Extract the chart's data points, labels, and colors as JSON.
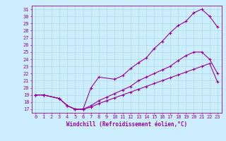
{
  "xlabel": "Windchill (Refroidissement éolien,°C)",
  "bg_color": "#cceeff",
  "line_color": "#990099",
  "xlim": [
    -0.5,
    23.5
  ],
  "ylim": [
    16.5,
    31.5
  ],
  "xticks": [
    0,
    1,
    2,
    3,
    4,
    5,
    6,
    7,
    8,
    9,
    10,
    11,
    12,
    13,
    14,
    15,
    16,
    17,
    18,
    19,
    20,
    21,
    22,
    23
  ],
  "yticks": [
    17,
    18,
    19,
    20,
    21,
    22,
    23,
    24,
    25,
    26,
    27,
    28,
    29,
    30,
    31
  ],
  "curve_top_x": [
    0,
    1,
    3,
    4,
    5,
    6,
    7,
    8,
    10,
    11,
    12,
    13,
    14,
    15,
    16,
    17,
    18,
    19,
    20,
    21,
    22,
    23
  ],
  "curve_top_y": [
    19,
    19,
    18.5,
    17.5,
    17,
    17,
    20,
    21.5,
    21.2,
    21.7,
    22.7,
    23.5,
    24.2,
    25.5,
    26.5,
    27.7,
    28.7,
    29.3,
    30.5,
    31.0,
    30.0,
    28.5
  ],
  "curve_mid_x": [
    0,
    1,
    3,
    4,
    5,
    6,
    7,
    8,
    9,
    10,
    11,
    12,
    13,
    14,
    15,
    16,
    17,
    18,
    19,
    20,
    21,
    22,
    23
  ],
  "curve_mid_y": [
    19,
    19,
    18.5,
    17.5,
    17,
    17,
    17.5,
    18.2,
    18.7,
    19.2,
    19.7,
    20.2,
    21.0,
    21.5,
    22.0,
    22.5,
    23.0,
    23.8,
    24.5,
    25.0,
    25.0,
    24.0,
    22.0
  ],
  "curve_bot_x": [
    0,
    1,
    3,
    4,
    5,
    6,
    7,
    8,
    9,
    10,
    11,
    12,
    13,
    14,
    15,
    16,
    17,
    18,
    19,
    20,
    21,
    22,
    23
  ],
  "curve_bot_y": [
    19,
    19,
    18.5,
    17.5,
    17,
    17,
    17.3,
    17.8,
    18.2,
    18.6,
    19.0,
    19.4,
    19.8,
    20.2,
    20.6,
    21.0,
    21.4,
    21.8,
    22.2,
    22.6,
    23.0,
    23.4,
    20.8
  ]
}
